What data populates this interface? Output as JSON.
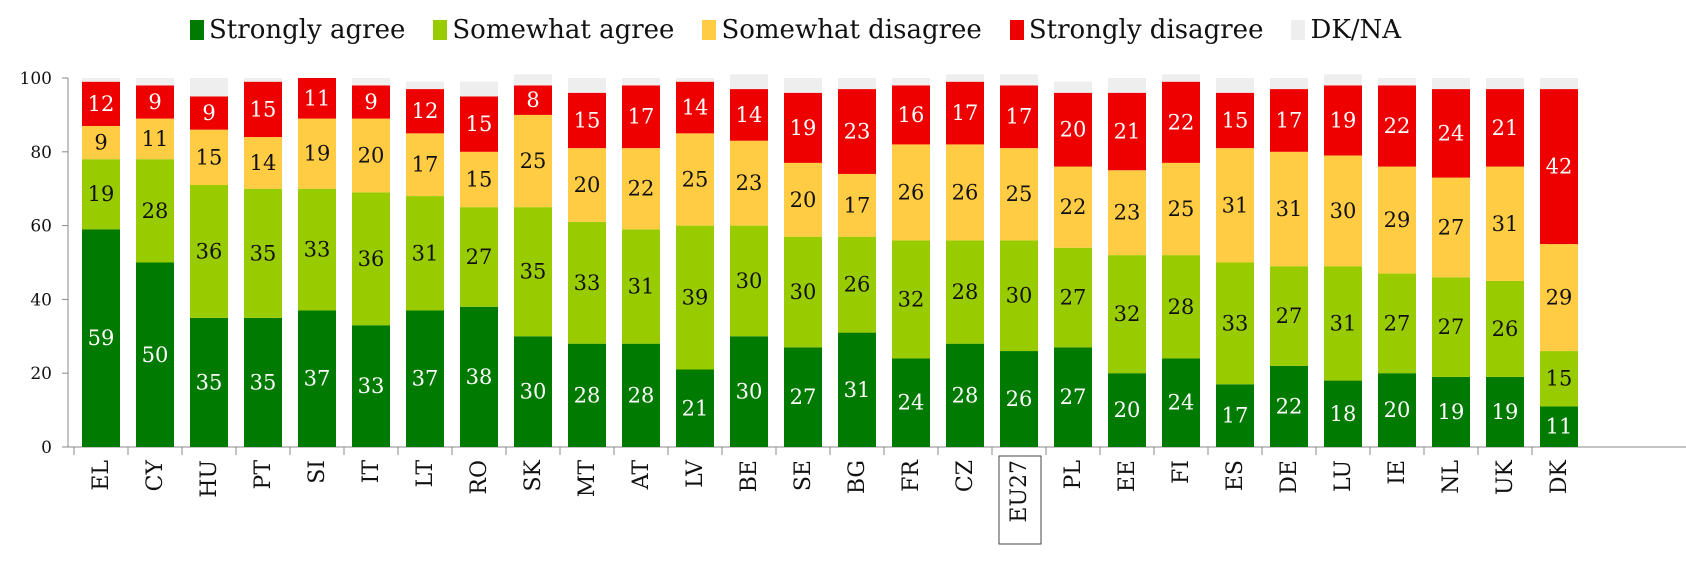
{
  "chart_data": {
    "type": "bar",
    "stacked": true,
    "title": "",
    "xlabel": "",
    "ylabel": "",
    "ylim": [
      0,
      100
    ],
    "yticks": [
      "0",
      "20",
      "40",
      "60",
      "80",
      "100"
    ],
    "legend_position": "top",
    "highlight_category": "EU27",
    "categories": [
      "EL",
      "CY",
      "HU",
      "PT",
      "SI",
      "IT",
      "LT",
      "RO",
      "SK",
      "MT",
      "AT",
      "LV",
      "BE",
      "SE",
      "BG",
      "FR",
      "CZ",
      "EU27",
      "PL",
      "EE",
      "FI",
      "ES",
      "DE",
      "LU",
      "IE",
      "NL",
      "UK",
      "DK"
    ],
    "series": [
      {
        "name": "Strongly agree",
        "color": "#007a00",
        "values": [
          59,
          50,
          35,
          35,
          37,
          33,
          37,
          38,
          30,
          28,
          28,
          21,
          30,
          27,
          31,
          24,
          28,
          26,
          27,
          20,
          24,
          17,
          22,
          18,
          20,
          19,
          19,
          11
        ]
      },
      {
        "name": "Somewhat agree",
        "color": "#99cc00",
        "values": [
          19,
          28,
          36,
          35,
          33,
          36,
          31,
          27,
          35,
          33,
          31,
          39,
          30,
          30,
          26,
          32,
          28,
          30,
          27,
          32,
          28,
          33,
          27,
          31,
          27,
          27,
          26,
          15
        ]
      },
      {
        "name": "Somewhat disagree",
        "color": "#ffcc44",
        "values": [
          9,
          11,
          15,
          14,
          19,
          20,
          17,
          15,
          25,
          20,
          22,
          25,
          23,
          20,
          17,
          26,
          26,
          25,
          22,
          23,
          25,
          31,
          31,
          30,
          29,
          27,
          31,
          29
        ]
      },
      {
        "name": "Strongly disagree",
        "color": "#ee0000",
        "values": [
          12,
          9,
          9,
          15,
          11,
          9,
          12,
          15,
          8,
          15,
          17,
          14,
          14,
          19,
          23,
          16,
          17,
          17,
          20,
          21,
          22,
          15,
          17,
          19,
          22,
          24,
          21,
          42
        ]
      },
      {
        "name": "DK/NA",
        "color": "#eeeeee",
        "values": [
          1,
          2,
          5,
          1,
          0,
          2,
          2,
          4,
          3,
          4,
          2,
          1,
          4,
          4,
          3,
          2,
          2,
          3,
          3,
          4,
          2,
          4,
          3,
          3,
          2,
          3,
          3,
          3
        ]
      }
    ]
  }
}
